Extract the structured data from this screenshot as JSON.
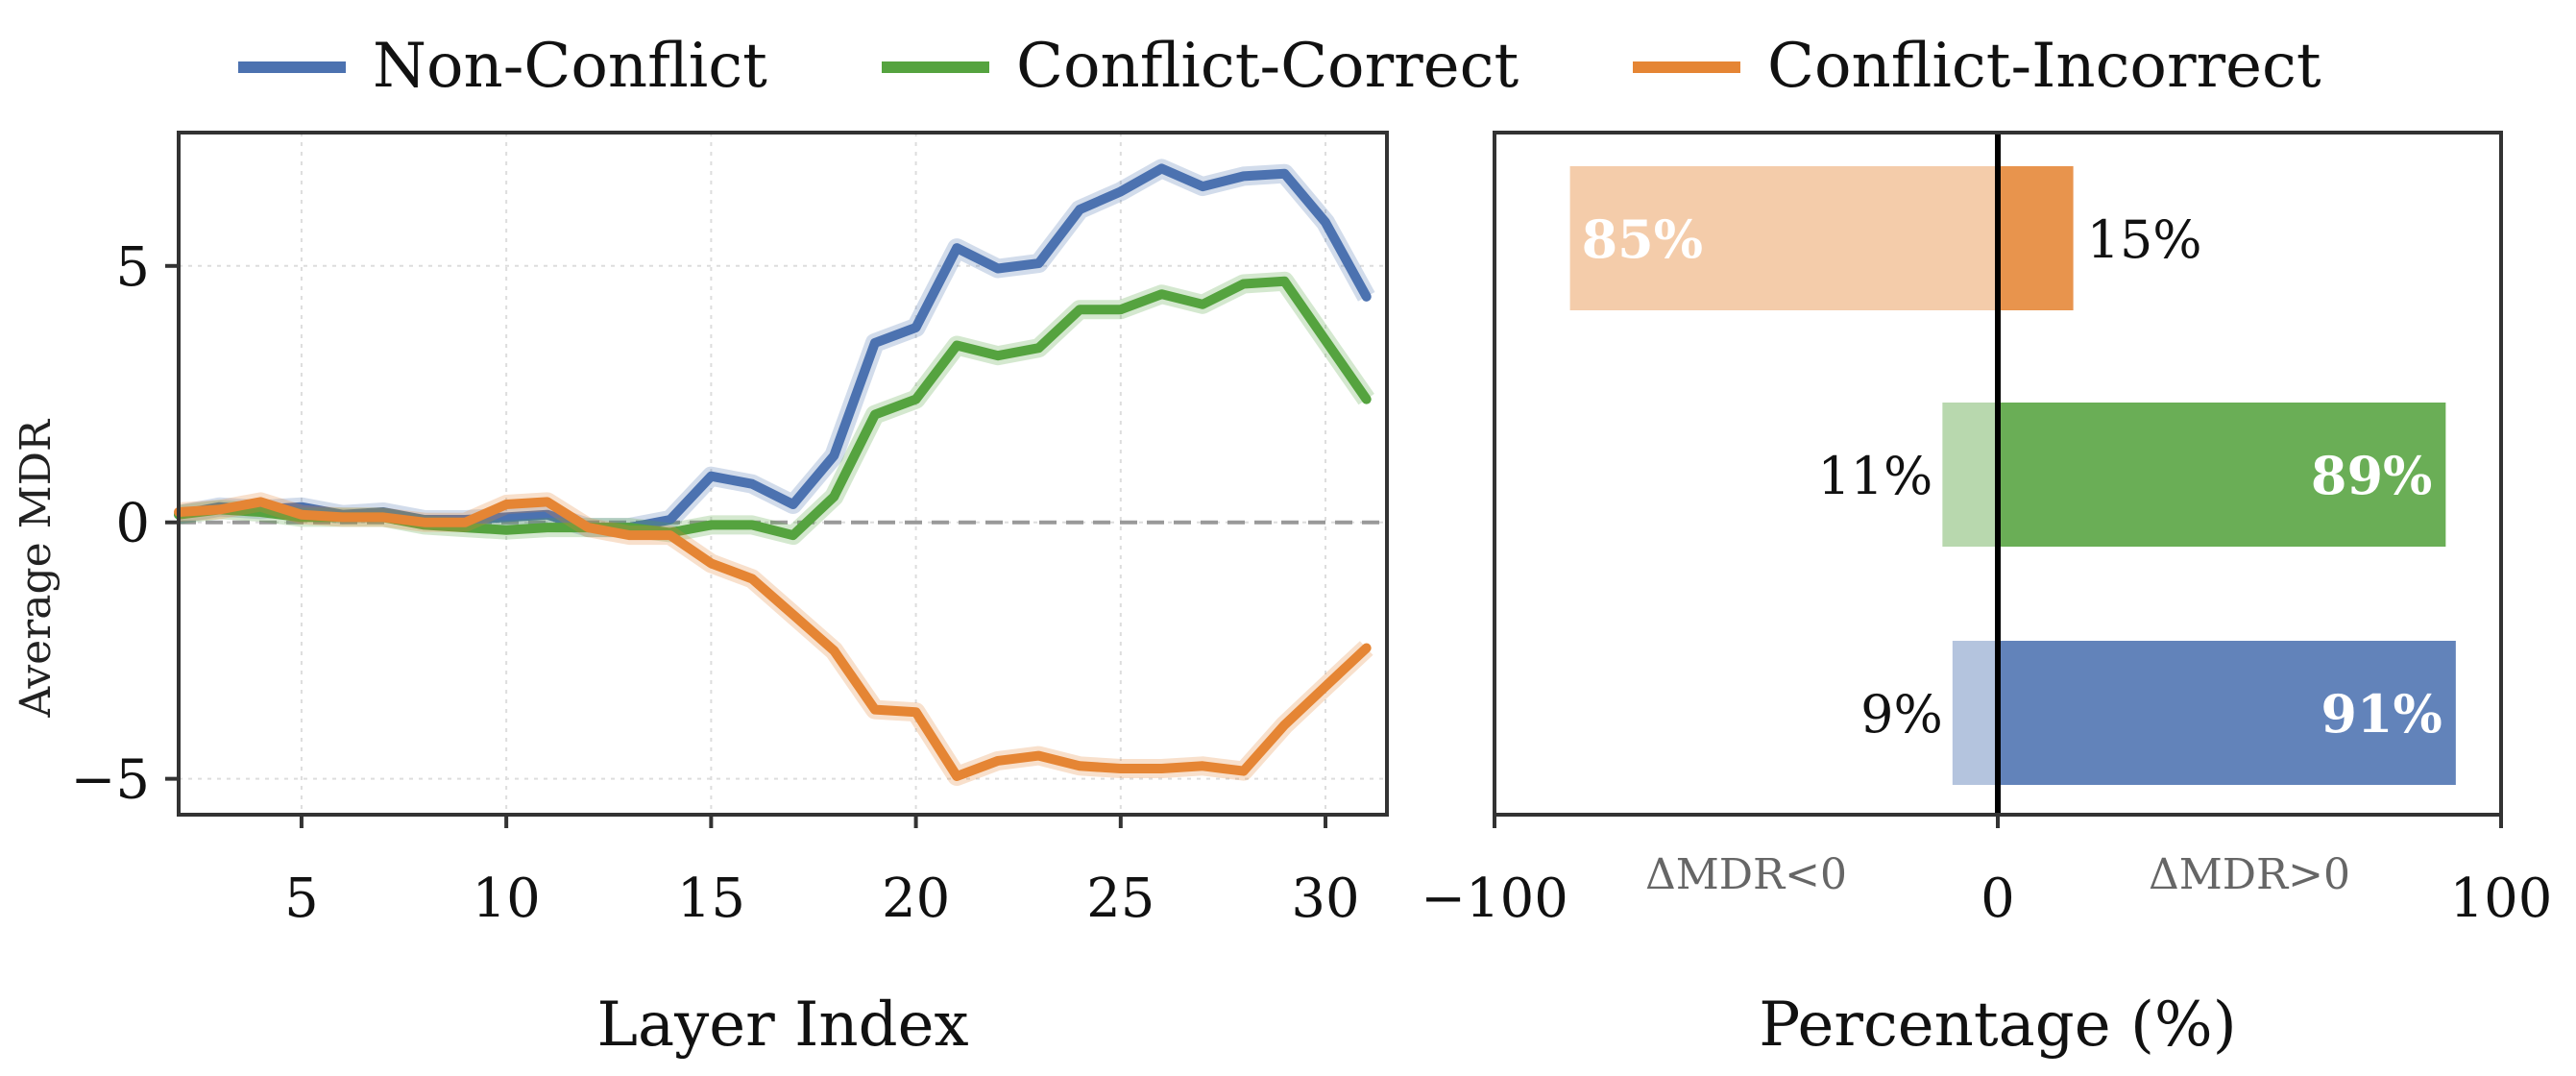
{
  "legend": [
    {
      "name": "Non-Conflict",
      "color": "#4c72b0"
    },
    {
      "name": "Conflict-Correct",
      "color": "#55a33f"
    },
    {
      "name": "Conflict-Incorrect",
      "color": "#e58534"
    }
  ],
  "chart_data": [
    {
      "type": "line",
      "xlabel": "Layer Index",
      "ylabel": "Average MDR",
      "xlim": [
        2,
        31.5
      ],
      "ylim": [
        -5.7,
        7.6
      ],
      "xticks": [
        "5",
        "10",
        "15",
        "20",
        "25",
        "30"
      ],
      "yticks": [
        "−5",
        "0",
        "5"
      ],
      "grid": true,
      "reference_line": 0,
      "x": [
        2,
        3,
        4,
        5,
        6,
        7,
        8,
        9,
        10,
        11,
        12,
        13,
        14,
        15,
        16,
        17,
        18,
        19,
        20,
        21,
        22,
        23,
        24,
        25,
        26,
        27,
        28,
        29,
        30,
        31
      ],
      "series": [
        {
          "name": "Non-Conflict",
          "color": "#4c72b0",
          "values": [
            0.15,
            0.3,
            0.25,
            0.3,
            0.15,
            0.2,
            0.05,
            0.05,
            0.1,
            0.15,
            -0.1,
            -0.1,
            0.05,
            0.9,
            0.75,
            0.35,
            1.3,
            3.5,
            3.8,
            5.35,
            4.95,
            5.05,
            6.1,
            6.45,
            6.9,
            6.55,
            6.75,
            6.8,
            5.85,
            4.4
          ]
        },
        {
          "name": "Conflict-Correct",
          "color": "#55a33f",
          "values": [
            0.15,
            0.25,
            0.2,
            0.1,
            0.1,
            0.1,
            -0.05,
            -0.1,
            -0.15,
            -0.1,
            -0.1,
            -0.1,
            -0.2,
            -0.05,
            -0.05,
            -0.25,
            0.5,
            2.1,
            2.4,
            3.45,
            3.25,
            3.4,
            4.15,
            4.15,
            4.45,
            4.25,
            4.65,
            4.7,
            3.55,
            2.4
          ]
        },
        {
          "name": "Conflict-Incorrect",
          "color": "#e58534",
          "values": [
            0.2,
            0.25,
            0.4,
            0.15,
            0.1,
            0.1,
            0.0,
            0.0,
            0.35,
            0.4,
            -0.1,
            -0.25,
            -0.25,
            -0.8,
            -1.1,
            -1.8,
            -2.5,
            -3.65,
            -3.7,
            -4.95,
            -4.65,
            -4.55,
            -4.75,
            -4.8,
            -4.8,
            -4.75,
            -4.85,
            -3.95,
            -3.2,
            -2.45
          ]
        }
      ]
    },
    {
      "type": "bar",
      "orientation": "horizontal",
      "xlabel": "Percentage (%)",
      "xlim": [
        -100,
        100
      ],
      "xticks": [
        "−100",
        "0",
        "100"
      ],
      "annotations": {
        "negative_side": "ΔMDR<0",
        "positive_side": "ΔMDR>0"
      },
      "bars": [
        {
          "series": "Conflict-Incorrect",
          "negative": -85,
          "positive": 15,
          "neg_label": "85%",
          "pos_label": "15%",
          "color": "#e58534"
        },
        {
          "series": "Conflict-Correct",
          "negative": -11,
          "positive": 89,
          "neg_label": "11%",
          "pos_label": "89%",
          "color": "#55a33f"
        },
        {
          "series": "Non-Conflict",
          "negative": -9,
          "positive": 91,
          "neg_label": "9%",
          "pos_label": "91%",
          "color": "#4c72b0"
        }
      ]
    }
  ]
}
